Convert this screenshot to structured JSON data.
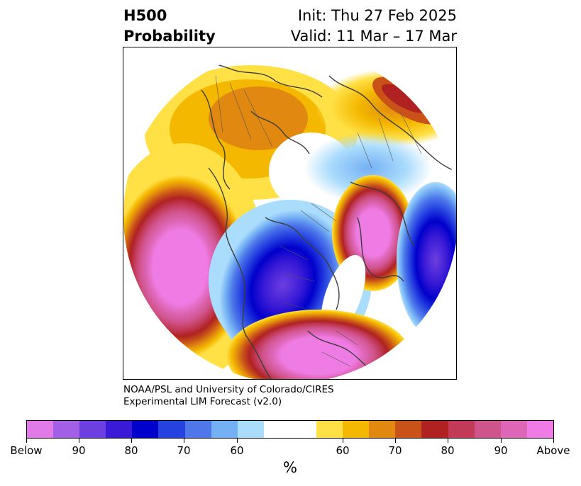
{
  "title": {
    "left_line1": "H500",
    "left_line2": "Probability",
    "right_line1": "Init: Thu 27 Feb 2025",
    "right_line2": "Valid: 11 Mar – 17 Mar"
  },
  "credit": {
    "line1": "NOAA/PSL and University of Colorado/CIRES",
    "line2": "Experimental LIM Forecast (v2.0)"
  },
  "colorbar": {
    "unit": "%",
    "colors": [
      "#e07ae8",
      "#a160e6",
      "#6d3fe0",
      "#3a1ad6",
      "#0000cc",
      "#2541e0",
      "#4e78ea",
      "#74b0f4",
      "#aadcfc",
      "#ffffff",
      "#ffe045",
      "#f4b800",
      "#e08810",
      "#c85218",
      "#b02222",
      "#c23a58",
      "#d0548c",
      "#de66b6",
      "#ee7ce4"
    ],
    "tick_labels": [
      "Below",
      "90",
      "80",
      "70",
      "60",
      "60",
      "70",
      "80",
      "90",
      "Above"
    ]
  }
}
